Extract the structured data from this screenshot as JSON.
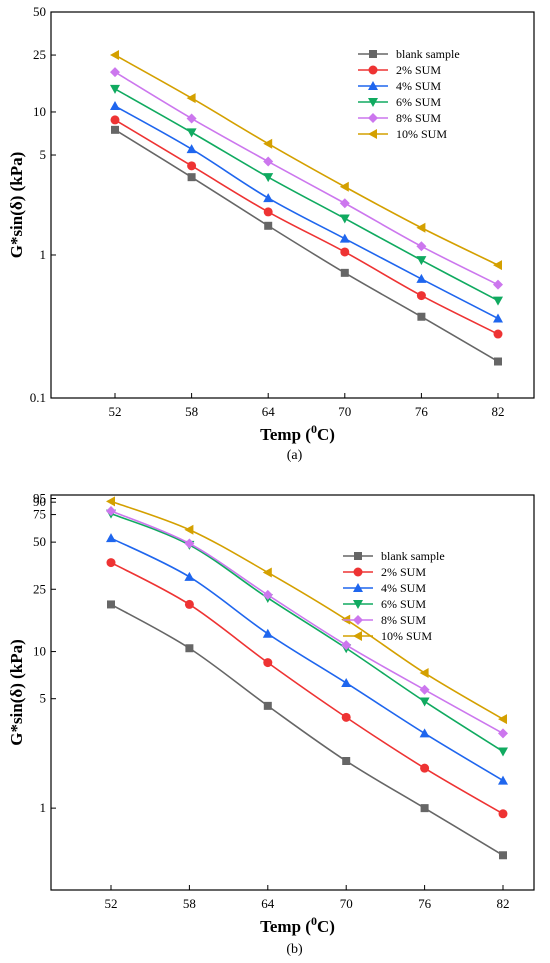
{
  "chart_data": [
    {
      "type": "line",
      "panel_label": "(a)",
      "xlabel": "Temp (",
      "xlabel_sup": "0",
      "xlabel_tail": "C)",
      "ylabel": "G*sin(δ) (kPa)",
      "yscale": "log",
      "ylim": [
        0.1,
        50
      ],
      "yticks": [
        0.1,
        1,
        5,
        10,
        25,
        50
      ],
      "ytick_labels": [
        "0.1",
        "1",
        "5",
        "10",
        "25",
        "50"
      ],
      "x": [
        52,
        58,
        64,
        70,
        76,
        82
      ],
      "xticks": [
        "52",
        "58",
        "64",
        "70",
        "76",
        "82"
      ],
      "legend_position": "top-right",
      "series": [
        {
          "name": "blank sample",
          "color": "#666666",
          "marker": "square",
          "values": [
            7.5,
            3.5,
            1.6,
            0.75,
            0.37,
            0.18
          ]
        },
        {
          "name": "2% SUM",
          "color": "#ee3333",
          "marker": "circle",
          "values": [
            8.8,
            4.2,
            2.0,
            1.05,
            0.52,
            0.28
          ]
        },
        {
          "name": "4% SUM",
          "color": "#1f66ee",
          "marker": "triangle-up",
          "values": [
            11.0,
            5.5,
            2.5,
            1.3,
            0.68,
            0.36
          ]
        },
        {
          "name": "6% SUM",
          "color": "#10aa60",
          "marker": "triangle-down",
          "values": [
            14.5,
            7.2,
            3.5,
            1.8,
            0.92,
            0.48
          ]
        },
        {
          "name": "8% SUM",
          "color": "#cc77ee",
          "marker": "diamond",
          "values": [
            19.0,
            9.0,
            4.5,
            2.3,
            1.15,
            0.62
          ]
        },
        {
          "name": "10% SUM",
          "color": "#d4a000",
          "marker": "triangle-left",
          "values": [
            25.0,
            12.5,
            6.0,
            3.0,
            1.55,
            0.85
          ]
        }
      ]
    },
    {
      "type": "line",
      "panel_label": "(b)",
      "xlabel": "Temp (",
      "xlabel_sup": "0",
      "xlabel_tail": "C)",
      "ylabel": "G*sin(δ) (kPa)",
      "yscale": "log",
      "ylim": [
        0.3,
        100
      ],
      "yticks": [
        1,
        5,
        10,
        25,
        50,
        75,
        90,
        95
      ],
      "ytick_labels": [
        "1",
        "5",
        "10",
        "25",
        "50",
        "75",
        "90",
        "95"
      ],
      "x": [
        52,
        58,
        64,
        70,
        76,
        82
      ],
      "xticks": [
        "52",
        "58",
        "64",
        "70",
        "76",
        "82"
      ],
      "legend_position": "top-right",
      "series": [
        {
          "name": "blank sample",
          "color": "#666666",
          "marker": "square",
          "values": [
            20,
            10.5,
            4.5,
            2.0,
            1.0,
            0.5
          ]
        },
        {
          "name": "2% SUM",
          "color": "#ee3333",
          "marker": "circle",
          "values": [
            37,
            20,
            8.5,
            3.8,
            1.8,
            0.92
          ]
        },
        {
          "name": "4% SUM",
          "color": "#1f66ee",
          "marker": "triangle-up",
          "values": [
            53,
            30,
            13,
            6.3,
            3.0,
            1.5
          ]
        },
        {
          "name": "6% SUM",
          "color": "#10aa60",
          "marker": "triangle-down",
          "values": [
            76,
            48,
            22,
            10.5,
            4.8,
            2.3
          ]
        },
        {
          "name": "8% SUM",
          "color": "#cc77ee",
          "marker": "diamond",
          "values": [
            79,
            49,
            23,
            11,
            5.7,
            3.0
          ]
        },
        {
          "name": "10% SUM",
          "color": "#d4a000",
          "marker": "triangle-left",
          "values": [
            91,
            60,
            32,
            16,
            7.3,
            3.7
          ]
        }
      ]
    }
  ]
}
